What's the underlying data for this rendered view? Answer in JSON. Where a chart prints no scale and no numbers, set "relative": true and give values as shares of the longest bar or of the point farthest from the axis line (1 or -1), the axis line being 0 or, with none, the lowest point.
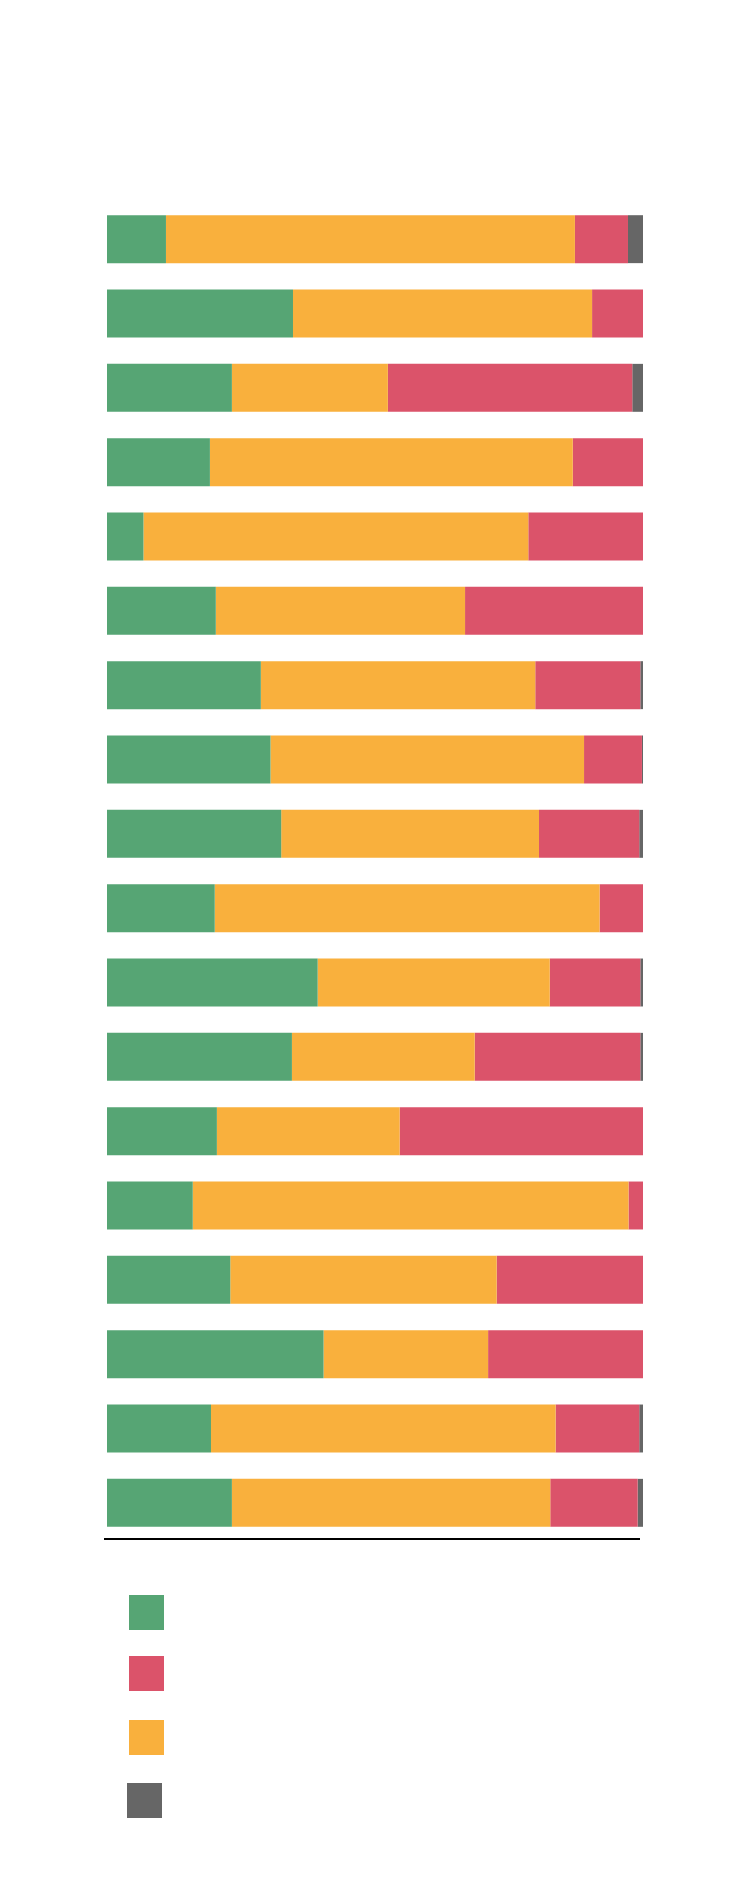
{
  "chart_data": {
    "type": "bar",
    "orientation": "horizontal",
    "stacked": true,
    "relative": true,
    "categories": [
      null,
      null,
      null,
      null,
      null,
      null,
      null,
      null,
      null,
      null,
      null,
      null,
      null,
      null,
      null,
      null,
      null,
      null
    ],
    "series": [
      {
        "color": "#56a574",
        "values": [
          0.11,
          0.347,
          0.233,
          0.192,
          0.068,
          0.203,
          0.287,
          0.305,
          0.325,
          0.201,
          0.393,
          0.345,
          0.205,
          0.16,
          0.23,
          0.404,
          0.194,
          0.233
        ]
      },
      {
        "color": "#f9b03d",
        "values": [
          0.763,
          0.558,
          0.291,
          0.677,
          0.718,
          0.465,
          0.512,
          0.585,
          0.481,
          0.718,
          0.433,
          0.341,
          0.341,
          0.813,
          0.497,
          0.307,
          0.643,
          0.594
        ]
      },
      {
        "color": "#db536a",
        "values": [
          0.099,
          0.095,
          0.456,
          0.131,
          0.214,
          0.332,
          0.196,
          0.108,
          0.187,
          0.081,
          0.169,
          0.309,
          0.454,
          0.027,
          0.273,
          0.289,
          0.156,
          0.163
        ]
      },
      {
        "color": "#666666",
        "values": [
          0.028,
          0,
          0.02,
          0,
          0,
          0,
          0.005,
          0.002,
          0.007,
          0,
          0.005,
          0.005,
          0,
          0,
          0,
          0,
          0.007,
          0.01
        ]
      }
    ]
  }
}
